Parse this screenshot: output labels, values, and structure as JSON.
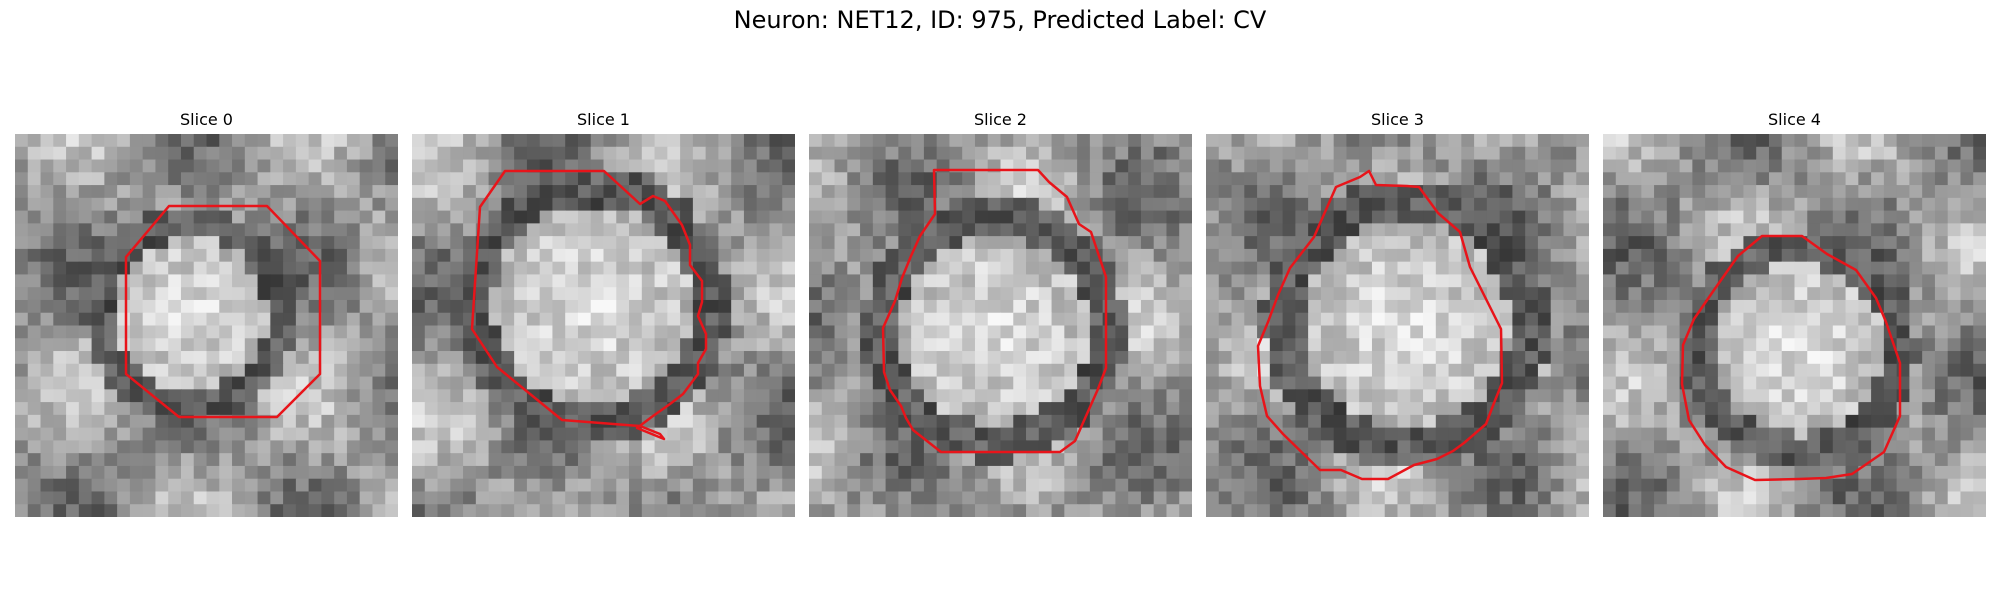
{
  "figure": {
    "title": "Neuron: NET12, ID: 975, Predicted Label: CV"
  },
  "panels": [
    {
      "title": "Slice 0",
      "outline_color": "#e8141a"
    },
    {
      "title": "Slice 1",
      "outline_color": "#e8141a"
    },
    {
      "title": "Slice 2",
      "outline_color": "#e8141a"
    },
    {
      "title": "Slice 3",
      "outline_color": "#e8141a"
    },
    {
      "title": "Slice 4",
      "outline_color": "#e8141a"
    }
  ]
}
